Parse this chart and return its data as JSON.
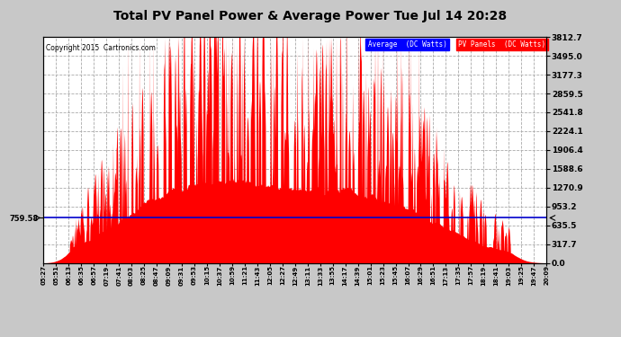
{
  "title": "Total PV Panel Power & Average Power Tue Jul 14 20:28",
  "copyright": "Copyright 2015  Cartronics.com",
  "legend_blue_label": "Average  (DC Watts)",
  "legend_red_label": "PV Panels  (DC Watts)",
  "ymin": 0.0,
  "ymax": 3812.7,
  "yticks": [
    0.0,
    317.7,
    635.5,
    953.2,
    1270.9,
    1588.6,
    1906.4,
    2224.1,
    2541.8,
    2859.5,
    3177.3,
    3495.0,
    3812.7
  ],
  "average_line": 759.58,
  "plot_bg_color": "#ffffff",
  "fig_bg_color": "#c8c8c8",
  "grid_color": "#aaaaaa",
  "red_color": "#ff0000",
  "blue_color": "#0000cc",
  "x_tick_labels": [
    "05:27",
    "05:51",
    "06:13",
    "06:35",
    "06:57",
    "07:19",
    "07:41",
    "08:03",
    "08:25",
    "08:47",
    "09:09",
    "09:31",
    "09:53",
    "10:15",
    "10:37",
    "10:59",
    "11:21",
    "11:43",
    "12:05",
    "12:27",
    "12:49",
    "13:11",
    "13:33",
    "13:55",
    "14:17",
    "14:39",
    "15:01",
    "15:23",
    "15:45",
    "16:07",
    "16:29",
    "16:51",
    "17:13",
    "17:35",
    "17:57",
    "18:19",
    "18:41",
    "19:03",
    "19:25",
    "19:47",
    "20:09"
  ],
  "num_points": 2000,
  "seed": 7,
  "figsize": [
    6.9,
    3.75
  ],
  "dpi": 100
}
